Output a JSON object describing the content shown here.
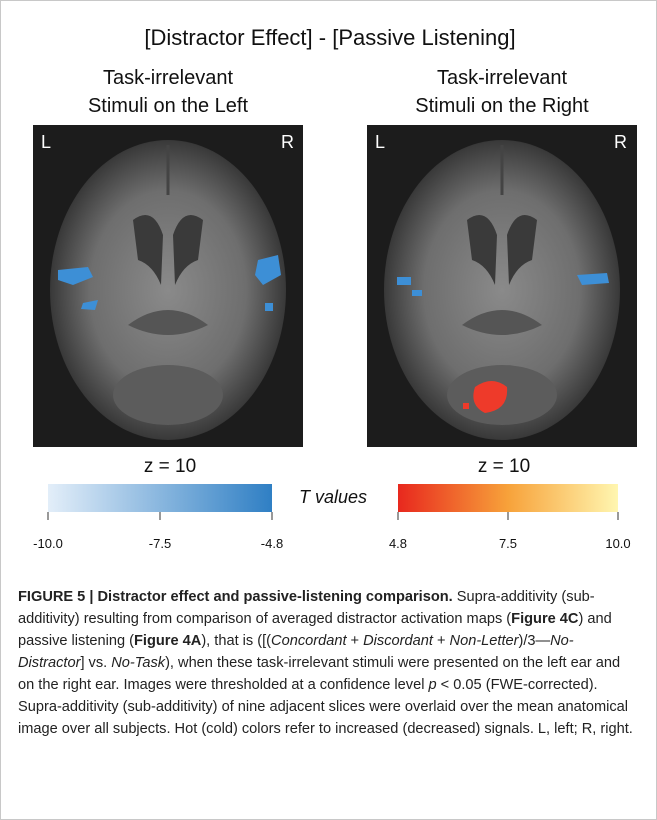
{
  "figure": {
    "title": "[Distractor Effect] - [Passive Listening]",
    "panels": [
      {
        "title": [
          "Task-irrelevant",
          "Stimuli on the Left"
        ],
        "left_label": "L",
        "right_label": "R",
        "slice": "z = 10"
      },
      {
        "title": [
          "Task-irrelevant",
          "Stimuli on the Right"
        ],
        "left_label": "L",
        "right_label": "R",
        "slice": "z = 10"
      }
    ],
    "colorbar": {
      "label": "T values",
      "cold_ticks": [
        "-10.0",
        "-7.5",
        "-4.8"
      ],
      "hot_ticks": [
        "4.8",
        "7.5",
        "10.0"
      ]
    }
  },
  "caption": {
    "title": "FIGURE 5 | Distractor effect and passive-listening comparison.",
    "body": [
      {
        "text": " Supra-additivity (sub-additivity) resulting from comparison of averaged distractor activation maps (",
        "style": "normal"
      },
      {
        "text": "Figure 4C",
        "style": "bold"
      },
      {
        "text": ") and passive listening (",
        "style": "normal"
      },
      {
        "text": "Figure 4A",
        "style": "bold"
      },
      {
        "text": "), that is ([(",
        "style": "normal"
      },
      {
        "text": "Concordant",
        "style": "italic"
      },
      {
        "text": " + ",
        "style": "normal"
      },
      {
        "text": "Discordant",
        "style": "italic"
      },
      {
        "text": " + ",
        "style": "normal"
      },
      {
        "text": "Non-Letter",
        "style": "italic"
      },
      {
        "text": ")/3—",
        "style": "normal"
      },
      {
        "text": "No-Distractor",
        "style": "italic"
      },
      {
        "text": "] vs. ",
        "style": "normal"
      },
      {
        "text": "No-Task",
        "style": "italic"
      },
      {
        "text": "), when these task-irrelevant stimuli were presented on the left ear and on the right ear. Images were thresholded at a confidence level ",
        "style": "normal"
      },
      {
        "text": "p",
        "style": "italic"
      },
      {
        "text": " < 0.05 (FWE-corrected). Supra-additivity (sub-additivity) of nine adjacent slices were overlaid over the mean anatomical image over all subjects. Hot (cold) colors refer to increased (decreased) signals. L, left; R, right.",
        "style": "normal"
      }
    ]
  }
}
